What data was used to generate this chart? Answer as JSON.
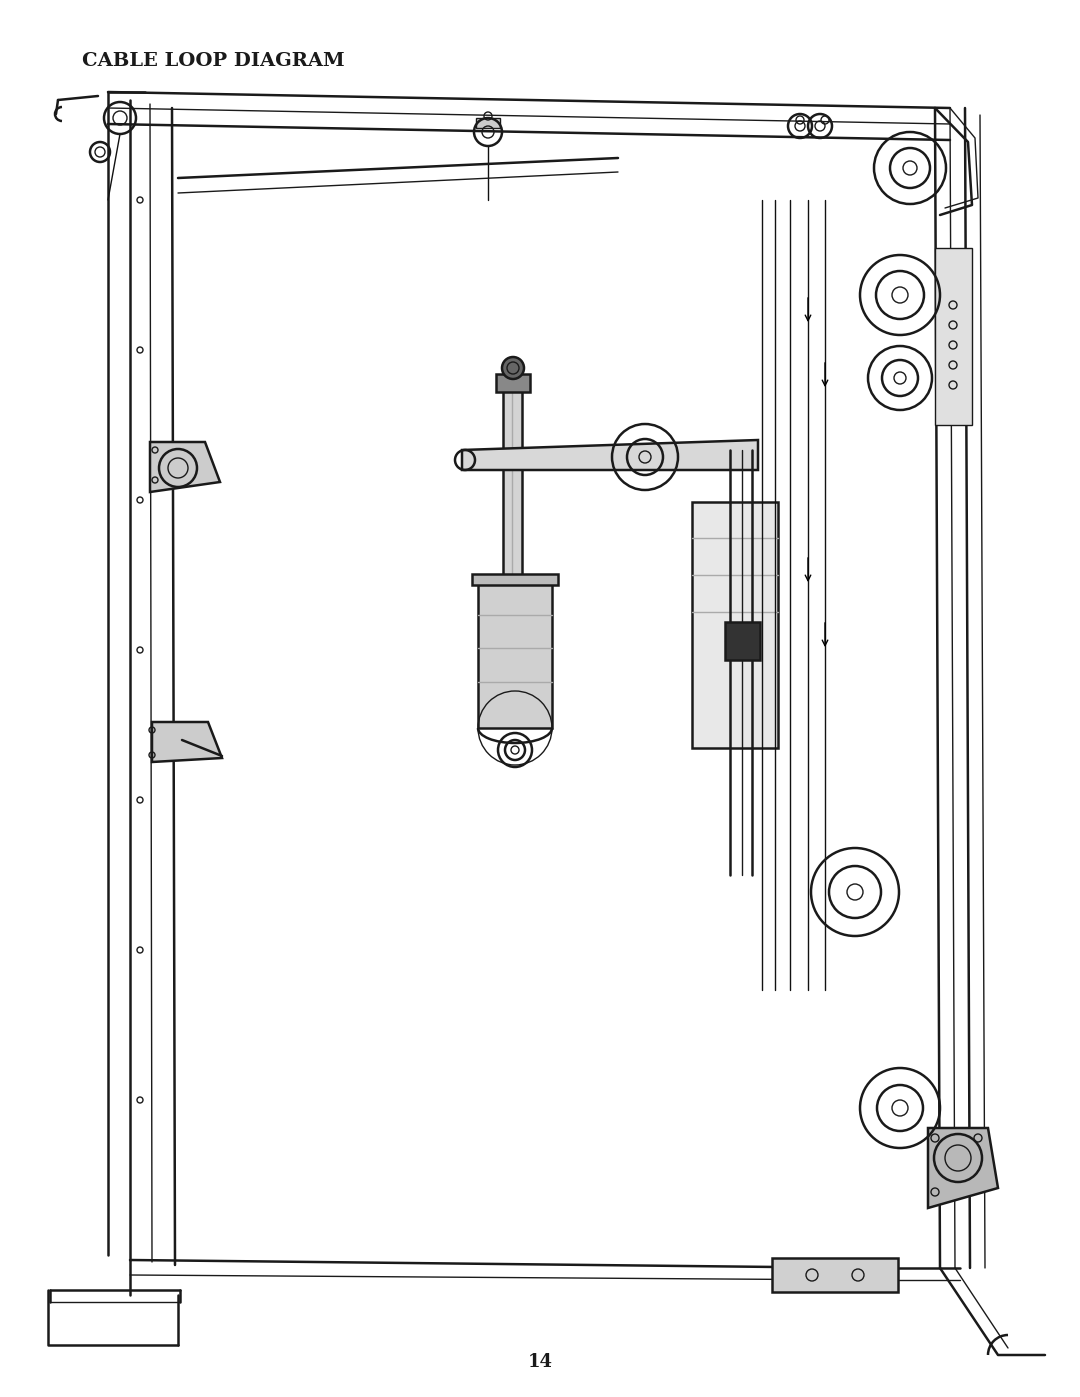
{
  "title": "CABLE LOOP DIAGRAM",
  "page_number": "14",
  "bg_color": "#ffffff",
  "line_color": "#1a1a1a",
  "title_fontsize": 14,
  "page_num_fontsize": 13,
  "fig_width": 10.8,
  "fig_height": 13.97,
  "dpi": 100
}
